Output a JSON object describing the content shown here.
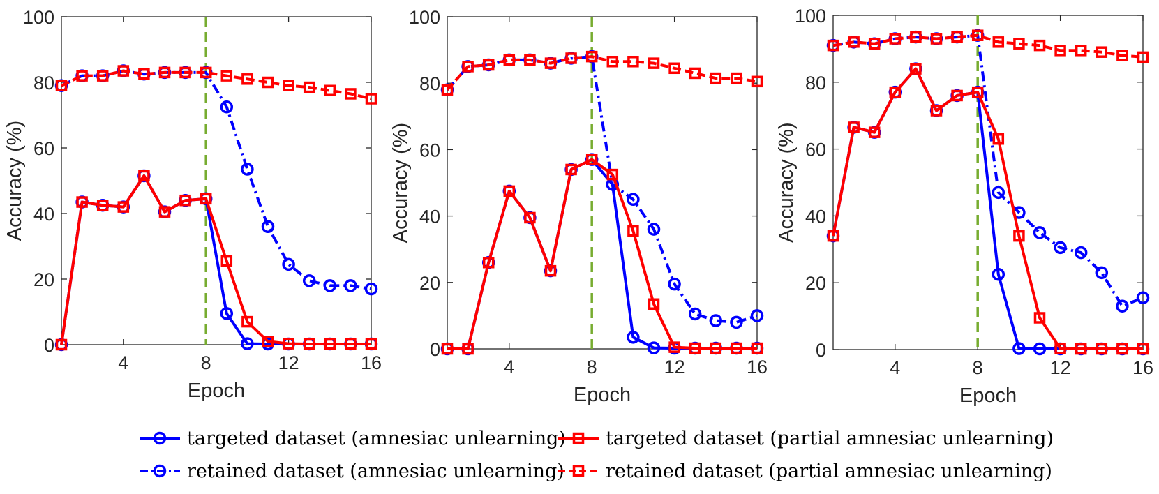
{
  "chart_data": [
    {
      "type": "line",
      "xlabel": "Epoch",
      "ylabel": "Accuracy (%)",
      "xlim": [
        1,
        16
      ],
      "ylim": [
        0,
        100
      ],
      "xticks": [
        4,
        8,
        12,
        16
      ],
      "yticks": [
        0,
        20,
        40,
        60,
        80,
        100
      ],
      "vline": 8,
      "x": [
        1,
        2,
        3,
        4,
        5,
        6,
        7,
        8,
        9,
        10,
        11,
        12,
        13,
        14,
        15,
        16
      ],
      "series": [
        {
          "name": "targeted dataset (amnesiac unlearning)",
          "color": "#0000ff",
          "line": "solid",
          "marker": "circle",
          "values": [
            0,
            43.5,
            42.5,
            42,
            51.5,
            40.5,
            44,
            44.5,
            9.5,
            0.3,
            0.2,
            0.2,
            0.2,
            0.2,
            0.2,
            0.2
          ]
        },
        {
          "name": "retained dataset (amnesiac unlearning)",
          "color": "#0000ff",
          "line": "dashdot",
          "marker": "circle",
          "values": [
            79,
            82,
            82,
            83.5,
            82.5,
            83,
            83,
            83,
            72.5,
            53.5,
            36,
            24.5,
            19.5,
            18,
            18,
            17
          ]
        },
        {
          "name": "targeted dataset (partial amnesiac unlearning)",
          "color": "#ff0000",
          "line": "solid",
          "marker": "square",
          "values": [
            0,
            43.5,
            42.5,
            42,
            51.5,
            40.5,
            44,
            44.5,
            25.5,
            7,
            1,
            0.3,
            0.2,
            0.2,
            0.2,
            0.2
          ]
        },
        {
          "name": "retained dataset (partial amnesiac unlearning)",
          "color": "#ff0000",
          "line": "dashed",
          "marker": "square",
          "values": [
            79,
            82,
            82,
            83.5,
            82.5,
            83,
            83,
            83,
            82,
            81,
            80,
            79,
            78.5,
            77.5,
            76.5,
            75
          ]
        }
      ]
    },
    {
      "type": "line",
      "xlabel": "Epoch",
      "ylabel": "Accuracy (%)",
      "xlim": [
        1,
        16
      ],
      "ylim": [
        0,
        100
      ],
      "xticks": [
        4,
        8,
        12,
        16
      ],
      "yticks": [
        0,
        20,
        40,
        60,
        80,
        100
      ],
      "vline": 8,
      "x": [
        1,
        2,
        3,
        4,
        5,
        6,
        7,
        8,
        9,
        10,
        11,
        12,
        13,
        14,
        15,
        16
      ],
      "series": [
        {
          "name": "targeted dataset (amnesiac unlearning)",
          "color": "#0000ff",
          "line": "solid",
          "marker": "circle",
          "values": [
            0,
            0,
            26,
            47.5,
            39.5,
            23.5,
            54,
            57,
            49.5,
            3.5,
            0.3,
            0.2,
            0.2,
            0.2,
            0.2,
            0.2
          ]
        },
        {
          "name": "retained dataset (amnesiac unlearning)",
          "color": "#0000ff",
          "line": "dashdot",
          "marker": "circle",
          "values": [
            78,
            85,
            85.5,
            87,
            87,
            86,
            87.5,
            88,
            49.5,
            45,
            36,
            19.5,
            10.5,
            8.5,
            8,
            10
          ]
        },
        {
          "name": "targeted dataset (partial amnesiac unlearning)",
          "color": "#ff0000",
          "line": "solid",
          "marker": "square",
          "values": [
            0,
            0,
            26,
            47.5,
            39.5,
            23.5,
            54,
            57,
            52.5,
            35.5,
            13.5,
            0.5,
            0.2,
            0.2,
            0.2,
            0.2
          ]
        },
        {
          "name": "retained dataset (partial amnesiac unlearning)",
          "color": "#ff0000",
          "line": "dashed",
          "marker": "square",
          "values": [
            78,
            85,
            85.5,
            87,
            87,
            86,
            87.5,
            88,
            86.5,
            86.5,
            86,
            84.5,
            83,
            81.5,
            81.5,
            80.5
          ]
        }
      ]
    },
    {
      "type": "line",
      "xlabel": "Epoch",
      "ylabel": "Accuracy (%)",
      "xlim": [
        1,
        16
      ],
      "ylim": [
        0,
        100
      ],
      "xticks": [
        4,
        8,
        12,
        16
      ],
      "yticks": [
        0,
        20,
        40,
        60,
        80,
        100
      ],
      "vline": 8,
      "x": [
        1,
        2,
        3,
        4,
        5,
        6,
        7,
        8,
        9,
        10,
        11,
        12,
        13,
        14,
        15,
        16
      ],
      "series": [
        {
          "name": "targeted dataset (amnesiac unlearning)",
          "color": "#0000ff",
          "line": "solid",
          "marker": "circle",
          "values": [
            34,
            66.5,
            65,
            77,
            84,
            71.5,
            76,
            77,
            22.5,
            0.3,
            0.2,
            0.2,
            0.2,
            0.2,
            0.2,
            0.2
          ]
        },
        {
          "name": "retained dataset (amnesiac unlearning)",
          "color": "#0000ff",
          "line": "dashdot",
          "marker": "circle",
          "values": [
            91,
            92,
            91.5,
            93,
            93.5,
            93,
            93.5,
            94,
            47,
            41,
            35,
            30.5,
            29,
            23,
            13,
            15.5
          ]
        },
        {
          "name": "targeted dataset (partial amnesiac unlearning)",
          "color": "#ff0000",
          "line": "solid",
          "marker": "square",
          "values": [
            34,
            66.5,
            65,
            77,
            84,
            71.5,
            76,
            77,
            63,
            34,
            9.5,
            0.3,
            0.2,
            0.2,
            0.2,
            0.2
          ]
        },
        {
          "name": "retained dataset (partial amnesiac unlearning)",
          "color": "#ff0000",
          "line": "dashed",
          "marker": "square",
          "values": [
            91,
            92,
            91.5,
            93,
            93.5,
            93,
            93.5,
            94,
            92,
            91.5,
            91,
            89.5,
            89.5,
            89,
            88,
            87.5
          ]
        }
      ]
    }
  ],
  "legend": {
    "items": [
      {
        "label": "targeted dataset (amnesiac unlearning)",
        "color": "#0000ff",
        "line": "solid",
        "marker": "circle"
      },
      {
        "label": "targeted dataset (partial amnesiac unlearning)",
        "color": "#ff0000",
        "line": "solid",
        "marker": "square"
      },
      {
        "label": "retained dataset (amnesiac unlearning)",
        "color": "#0000ff",
        "line": "dashdot",
        "marker": "circle"
      },
      {
        "label": "retained dataset (partial amnesiac unlearning)",
        "color": "#ff0000",
        "line": "dashed",
        "marker": "square"
      }
    ]
  },
  "colors": {
    "vline": "#77ac30",
    "axis": "#262626"
  }
}
